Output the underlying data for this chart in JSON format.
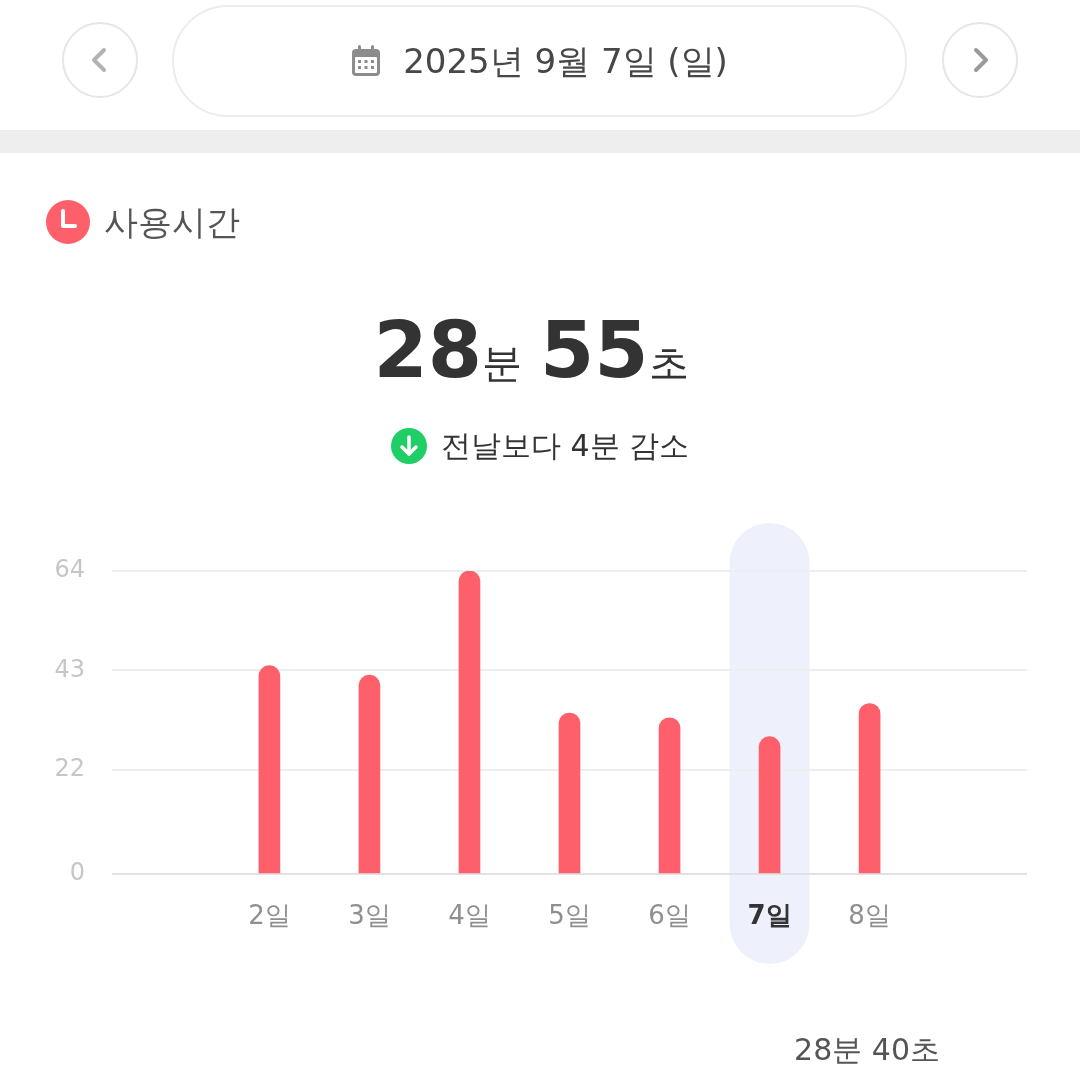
{
  "chart_data": {
    "type": "bar",
    "title": "사용시간",
    "subtitle": "28분 55초",
    "annotations": [
      "2025년 9월 7일 (일)",
      "전날보다 4분 감소",
      "28분 40초"
    ],
    "categories": [
      "2일",
      "3일",
      "4일",
      "5일",
      "6일",
      "7일",
      "8일"
    ],
    "values": [
      44,
      42,
      64,
      34,
      33,
      29,
      36
    ],
    "color": "#fd5f6b",
    "ylim": [
      0,
      64
    ],
    "yticks": [
      0,
      22,
      43,
      64
    ],
    "grid": "y",
    "bands": [
      {
        "axis": "x",
        "from": "7일",
        "to": "7일",
        "color": "#eef1fc"
      }
    ]
  }
}
